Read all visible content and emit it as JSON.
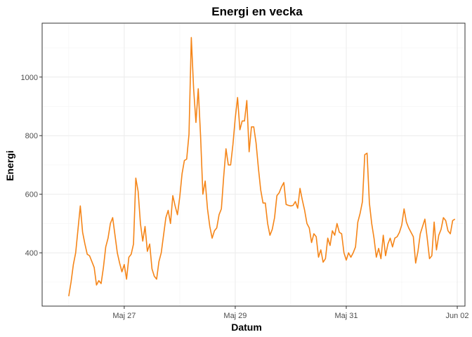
{
  "chart_data": {
    "type": "line",
    "title": "Energi en vecka",
    "xlabel": "Datum",
    "ylabel": "Energi",
    "x_range": [
      "2024-05-25T12:30",
      "2024-06-02T03:20"
    ],
    "ylim": [
      218,
      1184
    ],
    "x_ticks": [
      {
        "label": "Maj 27",
        "date": "2024-05-27T00:00"
      },
      {
        "label": "Maj 29",
        "date": "2024-05-29T00:00"
      },
      {
        "label": "Maj 31",
        "date": "2024-05-31T00:00"
      },
      {
        "label": "Jun 02",
        "date": "2024-06-02T00:00"
      }
    ],
    "y_ticks": [
      400,
      600,
      800,
      1000
    ],
    "grid": true,
    "line_color": "#F58518",
    "series": [
      {
        "x": [
          "2024-05-26T00:00",
          "2024-05-26T01:00",
          "2024-05-26T02:00",
          "2024-05-26T03:00",
          "2024-05-26T04:00",
          "2024-05-26T05:00",
          "2024-05-26T06:00",
          "2024-05-26T07:00",
          "2024-05-26T08:00",
          "2024-05-26T09:00",
          "2024-05-26T10:00",
          "2024-05-26T11:00",
          "2024-05-26T12:00",
          "2024-05-26T13:00",
          "2024-05-26T14:00",
          "2024-05-26T15:00",
          "2024-05-26T16:00",
          "2024-05-26T17:00",
          "2024-05-26T18:00",
          "2024-05-26T19:00",
          "2024-05-26T20:00",
          "2024-05-26T21:00",
          "2024-05-26T22:00",
          "2024-05-26T23:00",
          "2024-05-27T00:00",
          "2024-05-27T01:00",
          "2024-05-27T02:00",
          "2024-05-27T03:00",
          "2024-05-27T04:00",
          "2024-05-27T05:00",
          "2024-05-27T06:00",
          "2024-05-27T07:00",
          "2024-05-27T08:00",
          "2024-05-27T09:00",
          "2024-05-27T10:00",
          "2024-05-27T11:00",
          "2024-05-27T12:00",
          "2024-05-27T13:00",
          "2024-05-27T14:00",
          "2024-05-27T15:00",
          "2024-05-27T16:00",
          "2024-05-27T17:00",
          "2024-05-27T18:00",
          "2024-05-27T19:00",
          "2024-05-27T20:00",
          "2024-05-27T21:00",
          "2024-05-27T22:00",
          "2024-05-27T23:00",
          "2024-05-28T00:00",
          "2024-05-28T01:00",
          "2024-05-28T02:00",
          "2024-05-28T03:00",
          "2024-05-28T04:00",
          "2024-05-28T05:00",
          "2024-05-28T06:00",
          "2024-05-28T07:00",
          "2024-05-28T08:00",
          "2024-05-28T09:00",
          "2024-05-28T10:00",
          "2024-05-28T11:00",
          "2024-05-28T12:00",
          "2024-05-28T13:00",
          "2024-05-28T14:00",
          "2024-05-28T15:00",
          "2024-05-28T16:00",
          "2024-05-28T17:00",
          "2024-05-28T18:00",
          "2024-05-28T19:00",
          "2024-05-28T20:00",
          "2024-05-28T21:00",
          "2024-05-28T22:00",
          "2024-05-28T23:00",
          "2024-05-29T00:00",
          "2024-05-29T01:00",
          "2024-05-29T02:00",
          "2024-05-29T03:00",
          "2024-05-29T04:00",
          "2024-05-29T05:00",
          "2024-05-29T06:00",
          "2024-05-29T07:00",
          "2024-05-29T08:00",
          "2024-05-29T09:00",
          "2024-05-29T10:00",
          "2024-05-29T11:00",
          "2024-05-29T12:00",
          "2024-05-29T13:00",
          "2024-05-29T14:00",
          "2024-05-29T15:00",
          "2024-05-29T16:00",
          "2024-05-29T17:00",
          "2024-05-29T18:00",
          "2024-05-29T19:00",
          "2024-05-29T20:00",
          "2024-05-29T21:00",
          "2024-05-29T22:00",
          "2024-05-29T23:00",
          "2024-05-30T00:00",
          "2024-05-30T01:00",
          "2024-05-30T02:00",
          "2024-05-30T03:00",
          "2024-05-30T04:00",
          "2024-05-30T05:00",
          "2024-05-30T06:00",
          "2024-05-30T07:00",
          "2024-05-30T08:00",
          "2024-05-30T09:00",
          "2024-05-30T10:00",
          "2024-05-30T11:00",
          "2024-05-30T12:00",
          "2024-05-30T13:00",
          "2024-05-30T14:00",
          "2024-05-30T15:00",
          "2024-05-30T16:00",
          "2024-05-30T17:00",
          "2024-05-30T18:00",
          "2024-05-30T19:00",
          "2024-05-30T20:00",
          "2024-05-30T21:00",
          "2024-05-30T22:00",
          "2024-05-30T23:00",
          "2024-05-31T00:00",
          "2024-05-31T01:00",
          "2024-05-31T02:00",
          "2024-05-31T03:00",
          "2024-05-31T04:00",
          "2024-05-31T05:00",
          "2024-05-31T06:00",
          "2024-05-31T07:00",
          "2024-05-31T08:00",
          "2024-05-31T09:00",
          "2024-05-31T10:00",
          "2024-05-31T11:00",
          "2024-05-31T12:00",
          "2024-05-31T13:00",
          "2024-05-31T14:00",
          "2024-05-31T15:00",
          "2024-05-31T16:00",
          "2024-05-31T17:00",
          "2024-05-31T18:00",
          "2024-05-31T19:00",
          "2024-05-31T20:00",
          "2024-05-31T21:00",
          "2024-05-31T22:00",
          "2024-05-31T23:00",
          "2024-06-01T00:00",
          "2024-06-01T01:00",
          "2024-06-01T02:00",
          "2024-06-01T03:00",
          "2024-06-01T04:00",
          "2024-06-01T05:00",
          "2024-06-01T06:00",
          "2024-06-01T07:00",
          "2024-06-01T08:00",
          "2024-06-01T09:00",
          "2024-06-01T10:00",
          "2024-06-01T11:00",
          "2024-06-01T12:00",
          "2024-06-01T13:00",
          "2024-06-01T14:00",
          "2024-06-01T15:00",
          "2024-06-01T16:00",
          "2024-06-01T17:00",
          "2024-06-01T18:00",
          "2024-06-01T19:00",
          "2024-06-01T20:00",
          "2024-06-01T21:00",
          "2024-06-01T22:00",
          "2024-06-01T23:00"
        ],
        "y": [
          252,
          300,
          360,
          400,
          480,
          560,
          470,
          430,
          395,
          390,
          370,
          350,
          290,
          305,
          295,
          350,
          420,
          450,
          500,
          520,
          460,
          400,
          365,
          335,
          360,
          310,
          385,
          395,
          430,
          655,
          610,
          500,
          440,
          490,
          405,
          430,
          345,
          320,
          310,
          370,
          400,
          460,
          520,
          545,
          500,
          595,
          560,
          530,
          590,
          670,
          715,
          720,
          805,
          1135,
          960,
          845,
          960,
          800,
          600,
          645,
          550,
          490,
          450,
          475,
          485,
          530,
          550,
          660,
          755,
          700,
          700,
          770,
          860,
          930,
          820,
          850,
          850,
          920,
          745,
          830,
          830,
          775,
          690,
          615,
          570,
          570,
          500,
          460,
          480,
          520,
          595,
          605,
          625,
          640,
          565,
          562,
          560,
          562,
          575,
          552,
          620,
          580,
          545,
          500,
          485,
          435,
          465,
          455,
          385,
          410,
          368,
          380,
          450,
          425,
          475,
          460,
          500,
          470,
          465,
          400,
          375,
          400,
          385,
          400,
          420,
          505,
          535,
          575,
          735,
          740,
          570,
          500,
          450,
          385,
          415,
          380,
          460,
          390,
          430,
          450,
          420,
          450,
          455,
          470,
          495,
          550,
          505,
          485,
          470,
          455,
          365,
          405,
          465,
          490,
          515,
          450,
          380,
          390,
          505,
          410,
          460,
          480,
          520,
          510,
          475,
          465,
          510,
          515
        ]
      }
    ]
  }
}
